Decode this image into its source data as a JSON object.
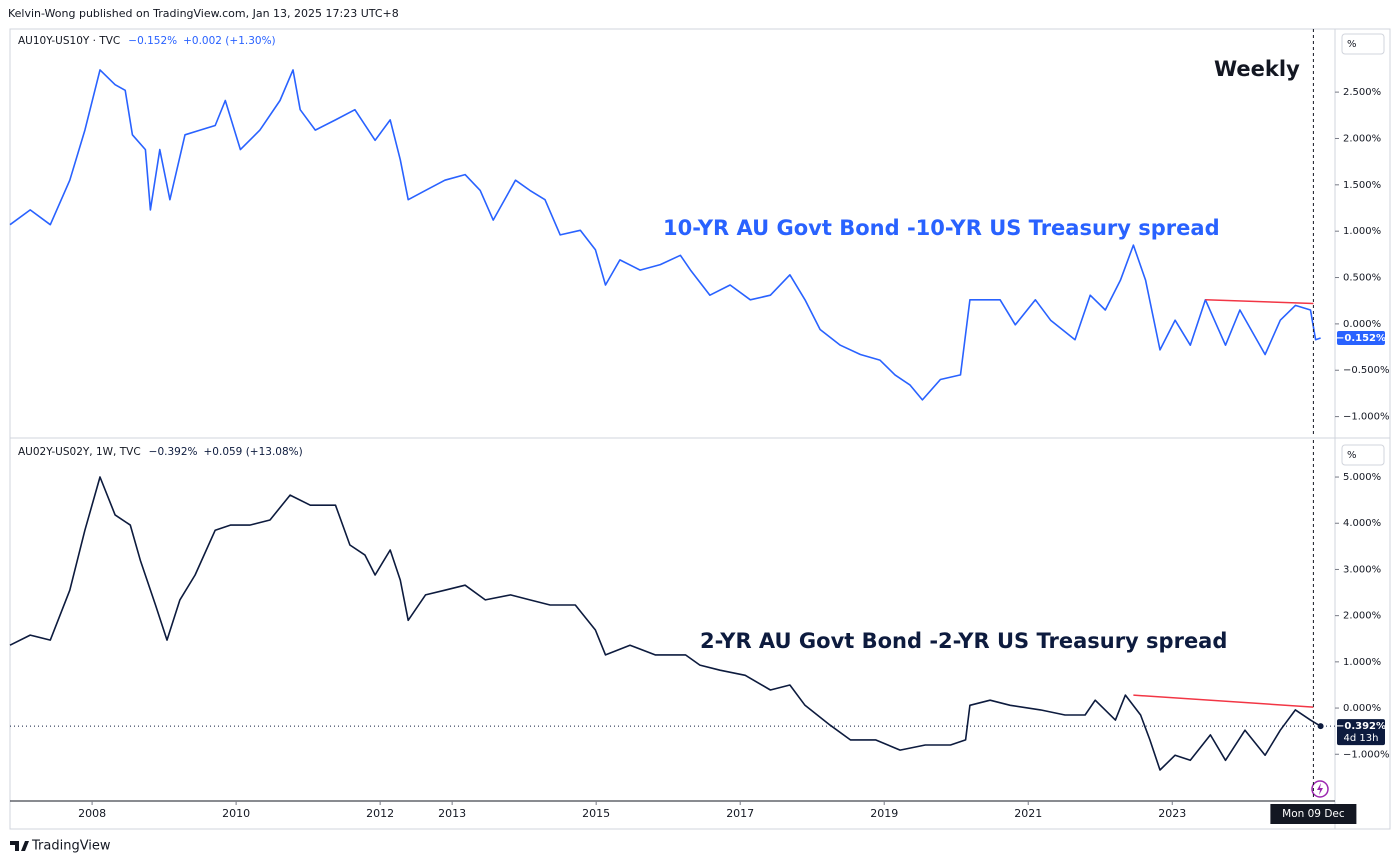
{
  "header": "Kelvin-Wong published on TradingView.com, Jan 13, 2025 17:23 UTC+8",
  "footer": "TradingView",
  "chart_data": [
    {
      "type": "line",
      "title": "10-YR AU Govt Bond -10-YR US Treasury spread",
      "annotation": "Weekly",
      "unit": "%",
      "legend_last": "−0.152%",
      "legend_change": "+0.002 (+1.30%)",
      "last_value_label": "−0.152%",
      "xlim": [
        2006.86,
        2025.26
      ],
      "ylim": [
        -1.22,
        3.17
      ],
      "yticks": [
        {
          "value": -1,
          "label": "−1.000%"
        },
        {
          "value": -0.5,
          "label": "−0.500%"
        },
        {
          "value": 0,
          "label": "0.000%"
        },
        {
          "value": 0.5,
          "label": "0.500%"
        },
        {
          "value": 1,
          "label": "1.000%"
        },
        {
          "value": 1.5,
          "label": "1.500%"
        },
        {
          "value": 2,
          "label": "2.000%"
        },
        {
          "value": 2.5,
          "label": "2.500%"
        }
      ],
      "x": [
        2006.86,
        2007.14,
        2007.42,
        2007.69,
        2007.9,
        2008.11,
        2008.32,
        2008.46,
        2008.56,
        2008.74,
        2008.81,
        2008.94,
        2009.08,
        2009.29,
        2009.5,
        2009.71,
        2009.85,
        2010.06,
        2010.33,
        2010.61,
        2010.79,
        2010.89,
        2011.1,
        2011.38,
        2011.65,
        2011.93,
        2012.14,
        2012.28,
        2012.39,
        2012.63,
        2012.9,
        2013.18,
        2013.39,
        2013.57,
        2013.88,
        2014.08,
        2014.29,
        2014.5,
        2014.78,
        2014.99,
        2015.13,
        2015.33,
        2015.61,
        2015.89,
        2016.17,
        2016.31,
        2016.58,
        2016.86,
        2017.14,
        2017.42,
        2017.69,
        2017.9,
        2018.11,
        2018.39,
        2018.67,
        2018.94,
        2019.15,
        2019.36,
        2019.53,
        2019.78,
        2020.06,
        2020.19,
        2020.4,
        2020.61,
        2020.82,
        2021.1,
        2021.31,
        2021.65,
        2021.86,
        2022.07,
        2022.28,
        2022.46,
        2022.63,
        2022.83,
        2023.04,
        2023.25,
        2023.46,
        2023.74,
        2023.94,
        2024.29,
        2024.5,
        2024.71,
        2024.92,
        2024.99,
        2025.06
      ],
      "series": [
        {
          "name": "AU10Y-US10Y · TVC",
          "color": "#2962ff",
          "values": [
            1.07,
            1.23,
            1.07,
            1.55,
            2.09,
            2.74,
            2.58,
            2.52,
            2.04,
            1.88,
            1.23,
            1.88,
            1.34,
            2.04,
            2.09,
            2.14,
            2.41,
            1.88,
            2.09,
            2.41,
            2.74,
            2.31,
            2.09,
            2.2,
            2.31,
            1.98,
            2.2,
            1.77,
            1.34,
            1.44,
            1.55,
            1.61,
            1.44,
            1.12,
            1.55,
            1.44,
            1.34,
            0.96,
            1.01,
            0.8,
            0.42,
            0.69,
            0.58,
            0.64,
            0.74,
            0.58,
            0.31,
            0.42,
            0.26,
            0.31,
            0.53,
            0.26,
            -0.06,
            -0.23,
            -0.33,
            -0.39,
            -0.55,
            -0.66,
            -0.82,
            -0.6,
            -0.55,
            0.26,
            0.26,
            0.26,
            -0.01,
            0.26,
            0.04,
            -0.17,
            0.31,
            0.15,
            0.47,
            0.85,
            0.47,
            -0.28,
            0.04,
            -0.23,
            0.26,
            -0.23,
            0.15,
            -0.33,
            0.04,
            0.2,
            0.15,
            -0.17,
            -0.152
          ]
        }
      ],
      "trendline": {
        "color": "#f23645",
        "x": [
          2023.46,
          2024.96
        ],
        "values": [
          0.26,
          0.22
        ]
      },
      "cursor_x": 2024.96
    },
    {
      "type": "line",
      "title": "2-YR AU Govt Bond -2-YR US Treasury spread",
      "unit": "%",
      "legend_last": "−0.392%",
      "legend_change": "+0.059 (+13.08%)",
      "last_value_label": "−0.392%",
      "countdown": "4d 13h",
      "cursor_label": "Mon 09 Dec",
      "cursor_x": 2024.96,
      "xlim": [
        2006.86,
        2025.26
      ],
      "xticks": [
        2008,
        2010,
        2012,
        2013,
        2015,
        2017,
        2019,
        2021,
        2023
      ],
      "ylim": [
        -1.99,
        5.78
      ],
      "yticks": [
        {
          "value": -1,
          "label": "−1.000%"
        },
        {
          "value": 0,
          "label": "0.000%"
        },
        {
          "value": 1,
          "label": "1.000%"
        },
        {
          "value": 2,
          "label": "2.000%"
        },
        {
          "value": 3,
          "label": "3.000%"
        },
        {
          "value": 4,
          "label": "4.000%"
        },
        {
          "value": 5,
          "label": "5.000%"
        }
      ],
      "x": [
        2006.86,
        2007.14,
        2007.42,
        2007.69,
        2007.9,
        2008.11,
        2008.32,
        2008.53,
        2008.67,
        2008.88,
        2009.04,
        2009.22,
        2009.43,
        2009.71,
        2009.92,
        2010.19,
        2010.47,
        2010.75,
        2011.03,
        2011.38,
        2011.58,
        2011.79,
        2011.93,
        2012.14,
        2012.28,
        2012.39,
        2012.63,
        2012.9,
        2013.18,
        2013.46,
        2013.81,
        2014.08,
        2014.36,
        2014.71,
        2014.99,
        2015.13,
        2015.47,
        2015.82,
        2016.24,
        2016.44,
        2016.72,
        2017.07,
        2017.42,
        2017.69,
        2017.9,
        2018.25,
        2018.53,
        2018.88,
        2019.22,
        2019.57,
        2019.92,
        2020.13,
        2020.19,
        2020.47,
        2020.75,
        2021.17,
        2021.51,
        2021.79,
        2021.93,
        2022.21,
        2022.35,
        2022.56,
        2022.69,
        2022.83,
        2023.04,
        2023.25,
        2023.53,
        2023.74,
        2024.01,
        2024.29,
        2024.5,
        2024.71,
        2024.92,
        2025.06
      ],
      "series": [
        {
          "name": "AU02Y-US02Y, 1W, TVC",
          "color": "#0d1b3e",
          "values": [
            1.36,
            1.58,
            1.47,
            2.55,
            3.85,
            5.0,
            4.18,
            3.96,
            3.2,
            2.23,
            1.47,
            2.34,
            2.88,
            3.85,
            3.96,
            3.96,
            4.07,
            4.61,
            4.39,
            4.39,
            3.53,
            3.31,
            2.88,
            3.42,
            2.77,
            1.9,
            2.45,
            2.55,
            2.66,
            2.34,
            2.45,
            2.34,
            2.23,
            2.23,
            1.69,
            1.15,
            1.36,
            1.15,
            1.15,
            0.93,
            0.82,
            0.71,
            0.39,
            0.5,
            0.06,
            -0.37,
            -0.69,
            -0.69,
            -0.91,
            -0.8,
            -0.8,
            -0.69,
            0.06,
            0.17,
            0.06,
            -0.04,
            -0.15,
            -0.15,
            0.17,
            -0.26,
            0.28,
            -0.15,
            -0.69,
            -1.34,
            -1.02,
            -1.13,
            -0.58,
            -1.13,
            -0.48,
            -1.02,
            -0.48,
            -0.04,
            -0.26,
            -0.392
          ]
        }
      ],
      "trendline": {
        "color": "#f23645",
        "x": [
          2022.46,
          2024.96
        ],
        "values": [
          0.28,
          0.02
        ]
      }
    }
  ]
}
